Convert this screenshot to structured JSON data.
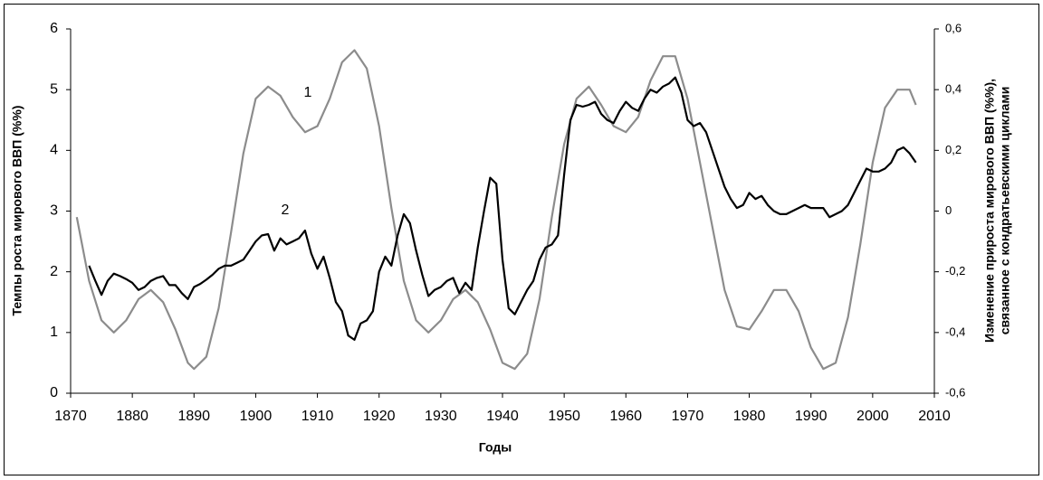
{
  "chart_data": {
    "type": "line",
    "x_label": "Годы",
    "y_label": "Темпы роста мирового ВВП (%%)",
    "y2_label": [
      "Изменение прироста мирового ВВП (%%),",
      "связанное с кондратьевскими циклами"
    ],
    "xlim": [
      1870,
      2010
    ],
    "xticks": [
      1870,
      1880,
      1890,
      1900,
      1910,
      1920,
      1930,
      1940,
      1950,
      1960,
      1970,
      1980,
      1990,
      2000,
      2010
    ],
    "ylim": [
      0,
      6
    ],
    "yticks": [
      0,
      1,
      2,
      3,
      4,
      5,
      6
    ],
    "y2lim": [
      -0.6,
      0.6
    ],
    "y2ticks": [
      {
        "value": -0.6,
        "label": "-0,6"
      },
      {
        "value": -0.4,
        "label": "-0,4"
      },
      {
        "value": -0.2,
        "label": "-0,2"
      },
      {
        "value": 0,
        "label": "0"
      },
      {
        "value": 0.2,
        "label": "0,2"
      },
      {
        "value": 0.4,
        "label": "0,4"
      },
      {
        "value": 0.6,
        "label": "0,6"
      }
    ],
    "series": [
      {
        "name": "1",
        "color": "#8c8c8c",
        "axis": "y2",
        "x": [
          1871,
          1873,
          1875,
          1877,
          1879,
          1881,
          1883,
          1885,
          1887,
          1889,
          1890,
          1892,
          1894,
          1896,
          1898,
          1900,
          1902,
          1904,
          1906,
          1908,
          1910,
          1912,
          1914,
          1916,
          1918,
          1920,
          1922,
          1924,
          1926,
          1928,
          1930,
          1932,
          1934,
          1936,
          1938,
          1940,
          1942,
          1944,
          1946,
          1948,
          1950,
          1952,
          1954,
          1956,
          1958,
          1960,
          1962,
          1964,
          1966,
          1968,
          1970,
          1972,
          1974,
          1976,
          1978,
          1980,
          1982,
          1984,
          1986,
          1988,
          1990,
          1992,
          1994,
          1996,
          1998,
          2000,
          2002,
          2004,
          2006,
          2007
        ],
        "values": [
          -0.02,
          -0.23,
          -0.36,
          -0.4,
          -0.36,
          -0.29,
          -0.26,
          -0.3,
          -0.39,
          -0.5,
          -0.52,
          -0.48,
          -0.32,
          -0.07,
          0.19,
          0.37,
          0.41,
          0.38,
          0.31,
          0.26,
          0.28,
          0.37,
          0.49,
          0.53,
          0.47,
          0.28,
          0.01,
          -0.23,
          -0.36,
          -0.4,
          -0.36,
          -0.29,
          -0.26,
          -0.3,
          -0.39,
          -0.5,
          -0.52,
          -0.47,
          -0.29,
          -0.02,
          0.22,
          0.37,
          0.41,
          0.35,
          0.28,
          0.26,
          0.31,
          0.43,
          0.51,
          0.51,
          0.37,
          0.16,
          -0.05,
          -0.26,
          -0.38,
          -0.39,
          -0.33,
          -0.26,
          -0.26,
          -0.33,
          -0.45,
          -0.52,
          -0.5,
          -0.35,
          -0.11,
          0.16,
          0.34,
          0.4,
          0.4,
          0.35
        ]
      },
      {
        "name": "2",
        "color": "#000000",
        "x": [
          1873,
          1874,
          1875,
          1876,
          1877,
          1878,
          1879,
          1880,
          1881,
          1882,
          1883,
          1884,
          1885,
          1886,
          1887,
          1888,
          1889,
          1890,
          1891,
          1892,
          1893,
          1894,
          1895,
          1896,
          1897,
          1898,
          1899,
          1900,
          1901,
          1902,
          1903,
          1904,
          1905,
          1906,
          1907,
          1908,
          1909,
          1910,
          1911,
          1912,
          1913,
          1914,
          1915,
          1916,
          1917,
          1918,
          1919,
          1920,
          1921,
          1922,
          1923,
          1924,
          1925,
          1926,
          1927,
          1928,
          1929,
          1930,
          1931,
          1932,
          1933,
          1934,
          1935,
          1936,
          1937,
          1938,
          1939,
          1940,
          1941,
          1942,
          1943,
          1944,
          1945,
          1946,
          1947,
          1948,
          1949,
          1950,
          1951,
          1952,
          1953,
          1954,
          1955,
          1956,
          1957,
          1958,
          1959,
          1960,
          1961,
          1962,
          1963,
          1964,
          1965,
          1966,
          1967,
          1968,
          1969,
          1970,
          1971,
          1972,
          1973,
          1974,
          1975,
          1976,
          1977,
          1978,
          1979,
          1980,
          1981,
          1982,
          1983,
          1984,
          1985,
          1986,
          1987,
          1988,
          1989,
          1990,
          1991,
          1992,
          1993,
          1994,
          1995,
          1996,
          1997,
          1998,
          1999,
          2000,
          2001,
          2002,
          2003,
          2004,
          2005,
          2006,
          2007
        ],
        "values": [
          2.1,
          1.85,
          1.62,
          1.85,
          1.97,
          1.93,
          1.88,
          1.82,
          1.7,
          1.75,
          1.85,
          1.9,
          1.93,
          1.78,
          1.78,
          1.65,
          1.55,
          1.75,
          1.8,
          1.87,
          1.95,
          2.05,
          2.1,
          2.1,
          2.15,
          2.2,
          2.35,
          2.5,
          2.6,
          2.62,
          2.35,
          2.55,
          2.45,
          2.5,
          2.55,
          2.68,
          2.3,
          2.05,
          2.25,
          1.9,
          1.5,
          1.35,
          0.95,
          0.88,
          1.15,
          1.2,
          1.35,
          2.0,
          2.25,
          2.1,
          2.6,
          2.95,
          2.8,
          2.35,
          1.95,
          1.6,
          1.7,
          1.75,
          1.85,
          1.9,
          1.65,
          1.82,
          1.7,
          2.4,
          3.0,
          3.55,
          3.45,
          2.2,
          1.4,
          1.3,
          1.5,
          1.7,
          1.85,
          2.2,
          2.4,
          2.45,
          2.6,
          3.6,
          4.5,
          4.75,
          4.72,
          4.75,
          4.8,
          4.6,
          4.5,
          4.45,
          4.65,
          4.8,
          4.7,
          4.65,
          4.85,
          5.0,
          4.95,
          5.05,
          5.1,
          5.2,
          4.95,
          4.5,
          4.4,
          4.45,
          4.3,
          4.0,
          3.7,
          3.4,
          3.2,
          3.05,
          3.1,
          3.3,
          3.2,
          3.25,
          3.1,
          3.0,
          2.95,
          2.95,
          3.0,
          3.05,
          3.1,
          3.05,
          3.05,
          3.05,
          2.9,
          2.95,
          3.0,
          3.1,
          3.3,
          3.5,
          3.7,
          3.65,
          3.65,
          3.7,
          3.8,
          4.0,
          4.05,
          3.95,
          3.8
        ]
      }
    ]
  }
}
